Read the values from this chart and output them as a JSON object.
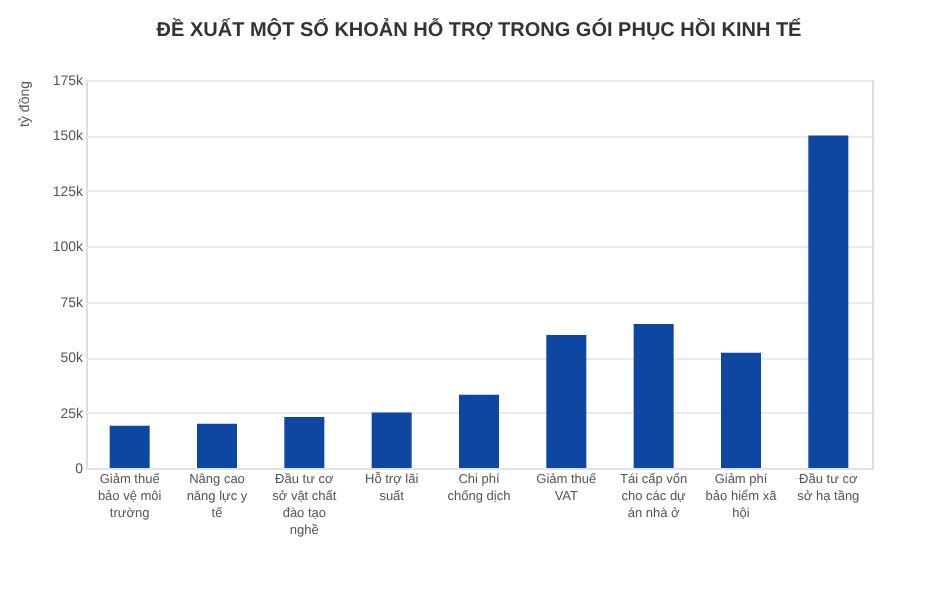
{
  "chart_data": {
    "type": "bar",
    "title": "ĐỀ XUẤT MỘT SỐ KHOẢN HỖ TRỢ TRONG GÓI PHỤC HỒI KINH TẾ",
    "ylabel": "tỷ đồng",
    "categories": [
      "Giảm thuế bảo vệ môi trường",
      "Nâng cao năng lực y tế",
      "Đầu tư cơ sở vật chất đào tạo nghề",
      "Hỗ trợ lãi suất",
      "Chi phí chống dịch",
      "Giảm thuế VAT",
      "Tái cấp vốn cho các dự án nhà ở",
      "Giảm phí bảo hiểm xã hội",
      "Đầu tư cơ sở hạ tầng"
    ],
    "values": [
      19000,
      20000,
      23000,
      25000,
      33000,
      60000,
      65000,
      52000,
      150000
    ],
    "color": "#0d47a1",
    "ylim": [
      0,
      175000
    ],
    "yticks": [
      {
        "value": 0,
        "label": "0"
      },
      {
        "value": 25000,
        "label": "25k"
      },
      {
        "value": 50000,
        "label": "50k"
      },
      {
        "value": 75000,
        "label": "75k"
      },
      {
        "value": 100000,
        "label": "100k"
      },
      {
        "value": 125000,
        "label": "125k"
      },
      {
        "value": 150000,
        "label": "150k"
      },
      {
        "value": 175000,
        "label": "175k"
      }
    ],
    "grid": "y"
  }
}
